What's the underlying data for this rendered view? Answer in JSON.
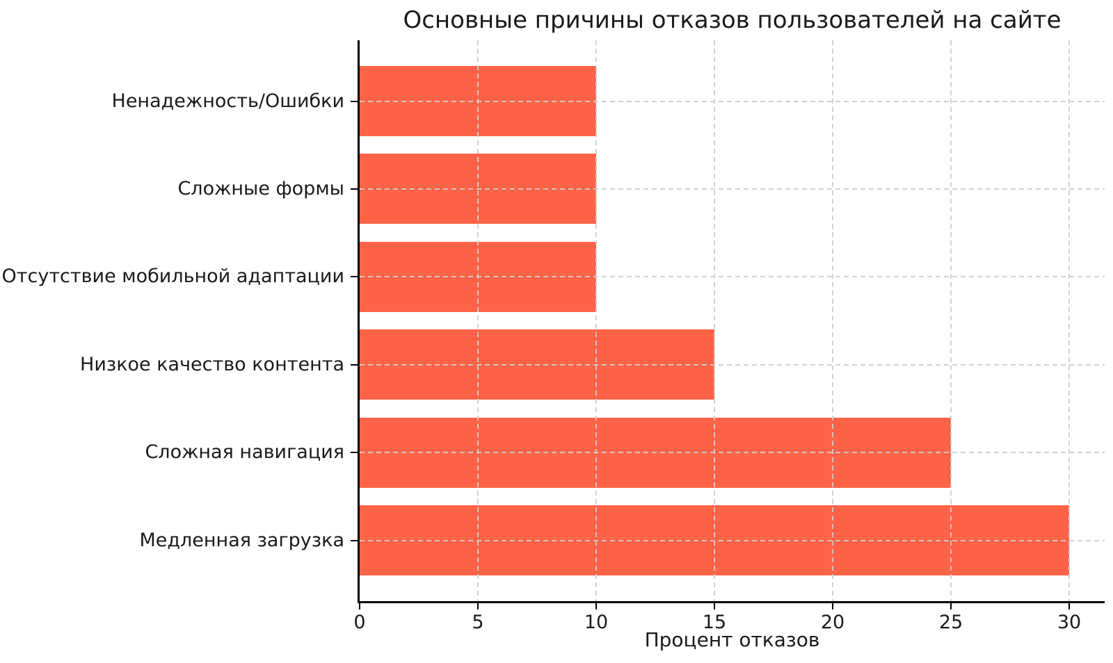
{
  "chart_data": {
    "type": "bar",
    "orientation": "horizontal",
    "title": "Основные причины отказов пользователей на сайте",
    "xlabel": "Процент отказов",
    "ylabel": "",
    "categories_top_to_bottom": [
      "Ненадежность/Ошибки",
      "Сложные формы",
      "Отсутствие мобильной адаптации",
      "Низкое качество контента",
      "Сложная навигация",
      "Медленная загрузка"
    ],
    "values": [
      10,
      10,
      10,
      15,
      25,
      30
    ],
    "x_ticks": [
      0,
      5,
      10,
      15,
      20,
      25,
      30
    ],
    "xlim": [
      0,
      31.5
    ],
    "bar_color": "#FF6347",
    "grid": {
      "style": "dashed",
      "color": "#cccccc",
      "axes": "both",
      "drawn_on_top_of_bars": true
    },
    "legend_position": "none"
  }
}
